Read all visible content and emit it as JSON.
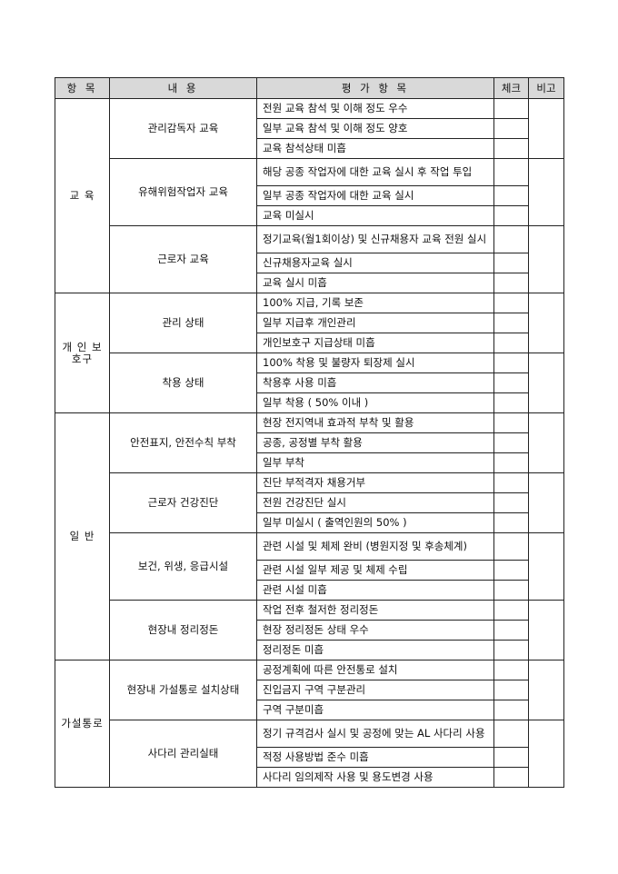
{
  "headers": {
    "category": "항 목",
    "content": "내  용",
    "items": "평 가 항 목",
    "check": "체크",
    "note": "비고"
  },
  "categories": [
    {
      "label": "교  육",
      "groups": [
        {
          "content": "관리감독자 교육",
          "items": [
            "전원 교육 참석 및 이해 정도 우수",
            "일부 교육 참석 및 이해 정도 양호",
            "교육 참석상태 미흡"
          ]
        },
        {
          "content": "유해위험작업자 교육",
          "items": [
            "해당 공종 작업자에 대한 교육 실시 후 작업 투입",
            "일부 공종 작업자에 대한 교육 실시",
            "교육 미실시"
          ]
        },
        {
          "content": "근로자 교육",
          "items": [
            "정기교육(월1회이상) 및 신규채용자 교육 전원 실시",
            "신규채용자교육 실시",
            "교육 실시 미흡"
          ]
        }
      ]
    },
    {
      "label": "개  인 보호구",
      "groups": [
        {
          "content": "관리 상태",
          "items": [
            "100% 지급, 기록 보존",
            "일부 지급후 개인관리",
            "개인보호구 지급상태 미흡"
          ]
        },
        {
          "content": "착용 상태",
          "items": [
            "100% 착용 및 불량자 퇴장제 실시",
            "착용후 사용 미흡",
            "일부 착용 ( 50% 이내 )"
          ]
        }
      ]
    },
    {
      "label": "일  반",
      "groups": [
        {
          "content": "안전표지, 안전수칙 부착",
          "items": [
            "현장 전지역내 효과적 부착 및 활용",
            "공종, 공정별 부착 활용",
            "일부 부착"
          ]
        },
        {
          "content": "근로자 건강진단",
          "items": [
            "진단 부적격자 채용거부",
            "전원 건강진단 실시",
            "일부 미실시 ( 출역인원의 50% )"
          ]
        },
        {
          "content": "보건, 위생, 응급시설",
          "items": [
            "관련 시설 및 체제 완비 (병원지정 및 후송체계)",
            "관련 시설 일부 제공 및 체제 수립",
            "관련 시설 미흡"
          ]
        },
        {
          "content": "현장내 정리정돈",
          "items": [
            "작업 전후 철저한 정리정돈",
            "현장 정리정돈 상태 우수",
            "정리정돈 미흡"
          ]
        }
      ]
    },
    {
      "label": "가설통로",
      "groups": [
        {
          "content": "현장내 가설통로 설치상태",
          "items": [
            "공정계획에 따른 안전통로 설치",
            "진입금지 구역 구분관리",
            "구역 구분미흡"
          ]
        },
        {
          "content": "사다리 관리실태",
          "items": [
            "정기 규격검사 실시 및 공정에 맞는 AL 사다리 사용",
            "적정 사용방법 준수 미흡",
            "사다리 임의제작 사용 및 용도변경 사용"
          ]
        }
      ]
    }
  ]
}
